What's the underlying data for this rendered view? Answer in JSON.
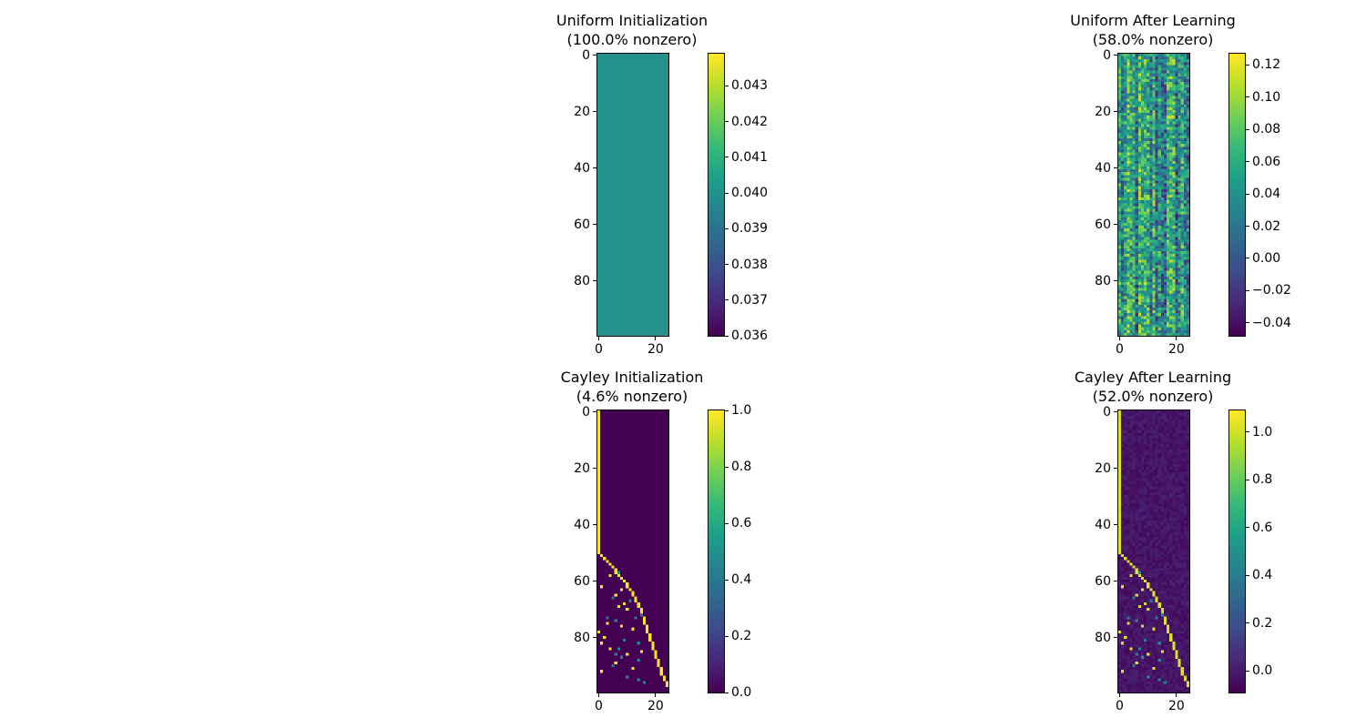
{
  "chart_data": [
    {
      "type": "heatmap",
      "title": "Uniform Initialization\n(100.0% nonzero)",
      "title_line1": "Uniform Initialization",
      "title_line2": "(100.0% nonzero)",
      "rows": 100,
      "cols": 25,
      "pattern": "constant",
      "value": 0.04,
      "xticks": [
        0,
        20
      ],
      "yticks": [
        0,
        20,
        40,
        60,
        80
      ],
      "colorbar": {
        "min": 0.036,
        "max": 0.0439,
        "ticks": [
          0.036,
          0.037,
          0.038,
          0.039,
          0.04,
          0.041,
          0.042,
          0.043
        ],
        "labels": [
          "0.036",
          "0.037",
          "0.038",
          "0.039",
          "0.040",
          "0.041",
          "0.042",
          "0.043"
        ]
      },
      "colormap": "viridis"
    },
    {
      "type": "heatmap",
      "title": "Uniform After Learning\n(58.0% nonzero)",
      "title_line1": "Uniform After Learning",
      "title_line2": "(58.0% nonzero)",
      "rows": 100,
      "cols": 25,
      "pattern": "noise",
      "xticks": [
        0,
        20
      ],
      "yticks": [
        0,
        20,
        40,
        60,
        80
      ],
      "colorbar": {
        "min": -0.048,
        "max": 0.127,
        "ticks": [
          -0.04,
          -0.02,
          0.0,
          0.02,
          0.04,
          0.06,
          0.08,
          0.1,
          0.12
        ],
        "labels": [
          "−0.04",
          "−0.02",
          "0.00",
          "0.02",
          "0.04",
          "0.06",
          "0.08",
          "0.10",
          "0.12"
        ]
      },
      "colormap": "viridis"
    },
    {
      "type": "heatmap",
      "title": "Cayley Initialization\n(4.6% nonzero)",
      "title_line1": "Cayley Initialization",
      "title_line2": "(4.6% nonzero)",
      "rows": 100,
      "cols": 25,
      "pattern": "cayley",
      "xticks": [
        0,
        20
      ],
      "yticks": [
        0,
        20,
        40,
        60,
        80
      ],
      "colorbar": {
        "min": 0.0,
        "max": 1.0,
        "ticks": [
          0.0,
          0.2,
          0.4,
          0.6,
          0.8,
          1.0
        ],
        "labels": [
          "0.0",
          "0.2",
          "0.4",
          "0.6",
          "0.8",
          "1.0"
        ]
      },
      "colormap": "viridis"
    },
    {
      "type": "heatmap",
      "title": "Cayley After Learning\n(52.0% nonzero)",
      "title_line1": "Cayley After Learning",
      "title_line2": "(52.0% nonzero)",
      "rows": 100,
      "cols": 25,
      "pattern": "cayley-learned",
      "xticks": [
        0,
        20
      ],
      "yticks": [
        0,
        20,
        40,
        60,
        80
      ],
      "colorbar": {
        "min": -0.09,
        "max": 1.09,
        "ticks": [
          0.0,
          0.2,
          0.4,
          0.6,
          0.8,
          1.0
        ],
        "labels": [
          "0.0",
          "0.2",
          "0.4",
          "0.6",
          "0.8",
          "1.0"
        ]
      },
      "colormap": "viridis"
    }
  ]
}
